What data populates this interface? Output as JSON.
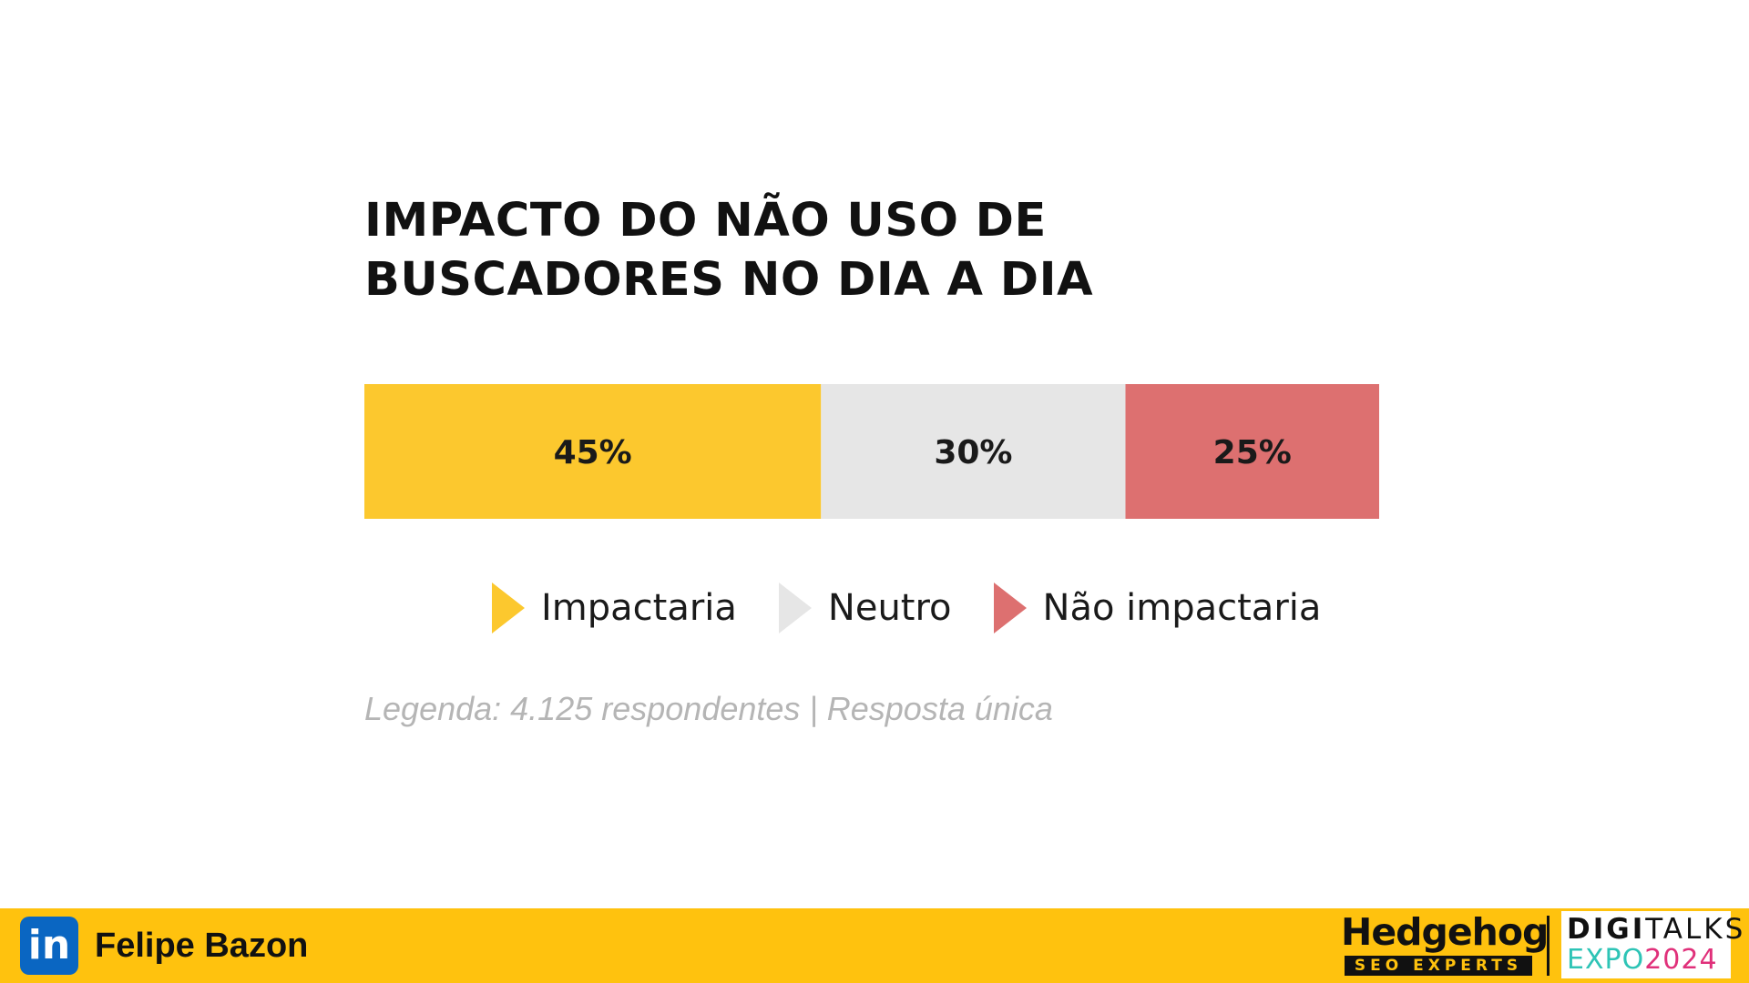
{
  "chart_data": {
    "type": "bar",
    "stacked": true,
    "orientation": "horizontal",
    "title": "IMPACTO DO NÃO USO DE BUSCADORES NO DIA A DIA",
    "title_lines": [
      "IMPACTO DO NÃO USO DE",
      "BUSCADORES NO DIA A DIA"
    ],
    "categories": [
      "Impactaria",
      "Neutro",
      "Não impactaria"
    ],
    "values": [
      45,
      30,
      25
    ],
    "value_labels": [
      "45%",
      "30%",
      "25%"
    ],
    "colors": [
      "#fcc82e",
      "#e6e6e6",
      "#dd7070"
    ],
    "unit": "%",
    "legend_position": "bottom",
    "caption": "Legenda: 4.125 respondentes | Resposta única"
  },
  "footer": {
    "linkedin_icon": "linkedin-icon",
    "linkedin_glyph": "in",
    "author": "Felipe Bazon",
    "background": "#ffc20e",
    "hedgehog_name": "Hedgehog",
    "hedgehog_sub": "SEO EXPERTS",
    "digitalks_top_bold": "DIGI",
    "digitalks_top_rest": "TALKS",
    "digitalks_expo": "EXPO",
    "digitalks_year": "2024"
  }
}
